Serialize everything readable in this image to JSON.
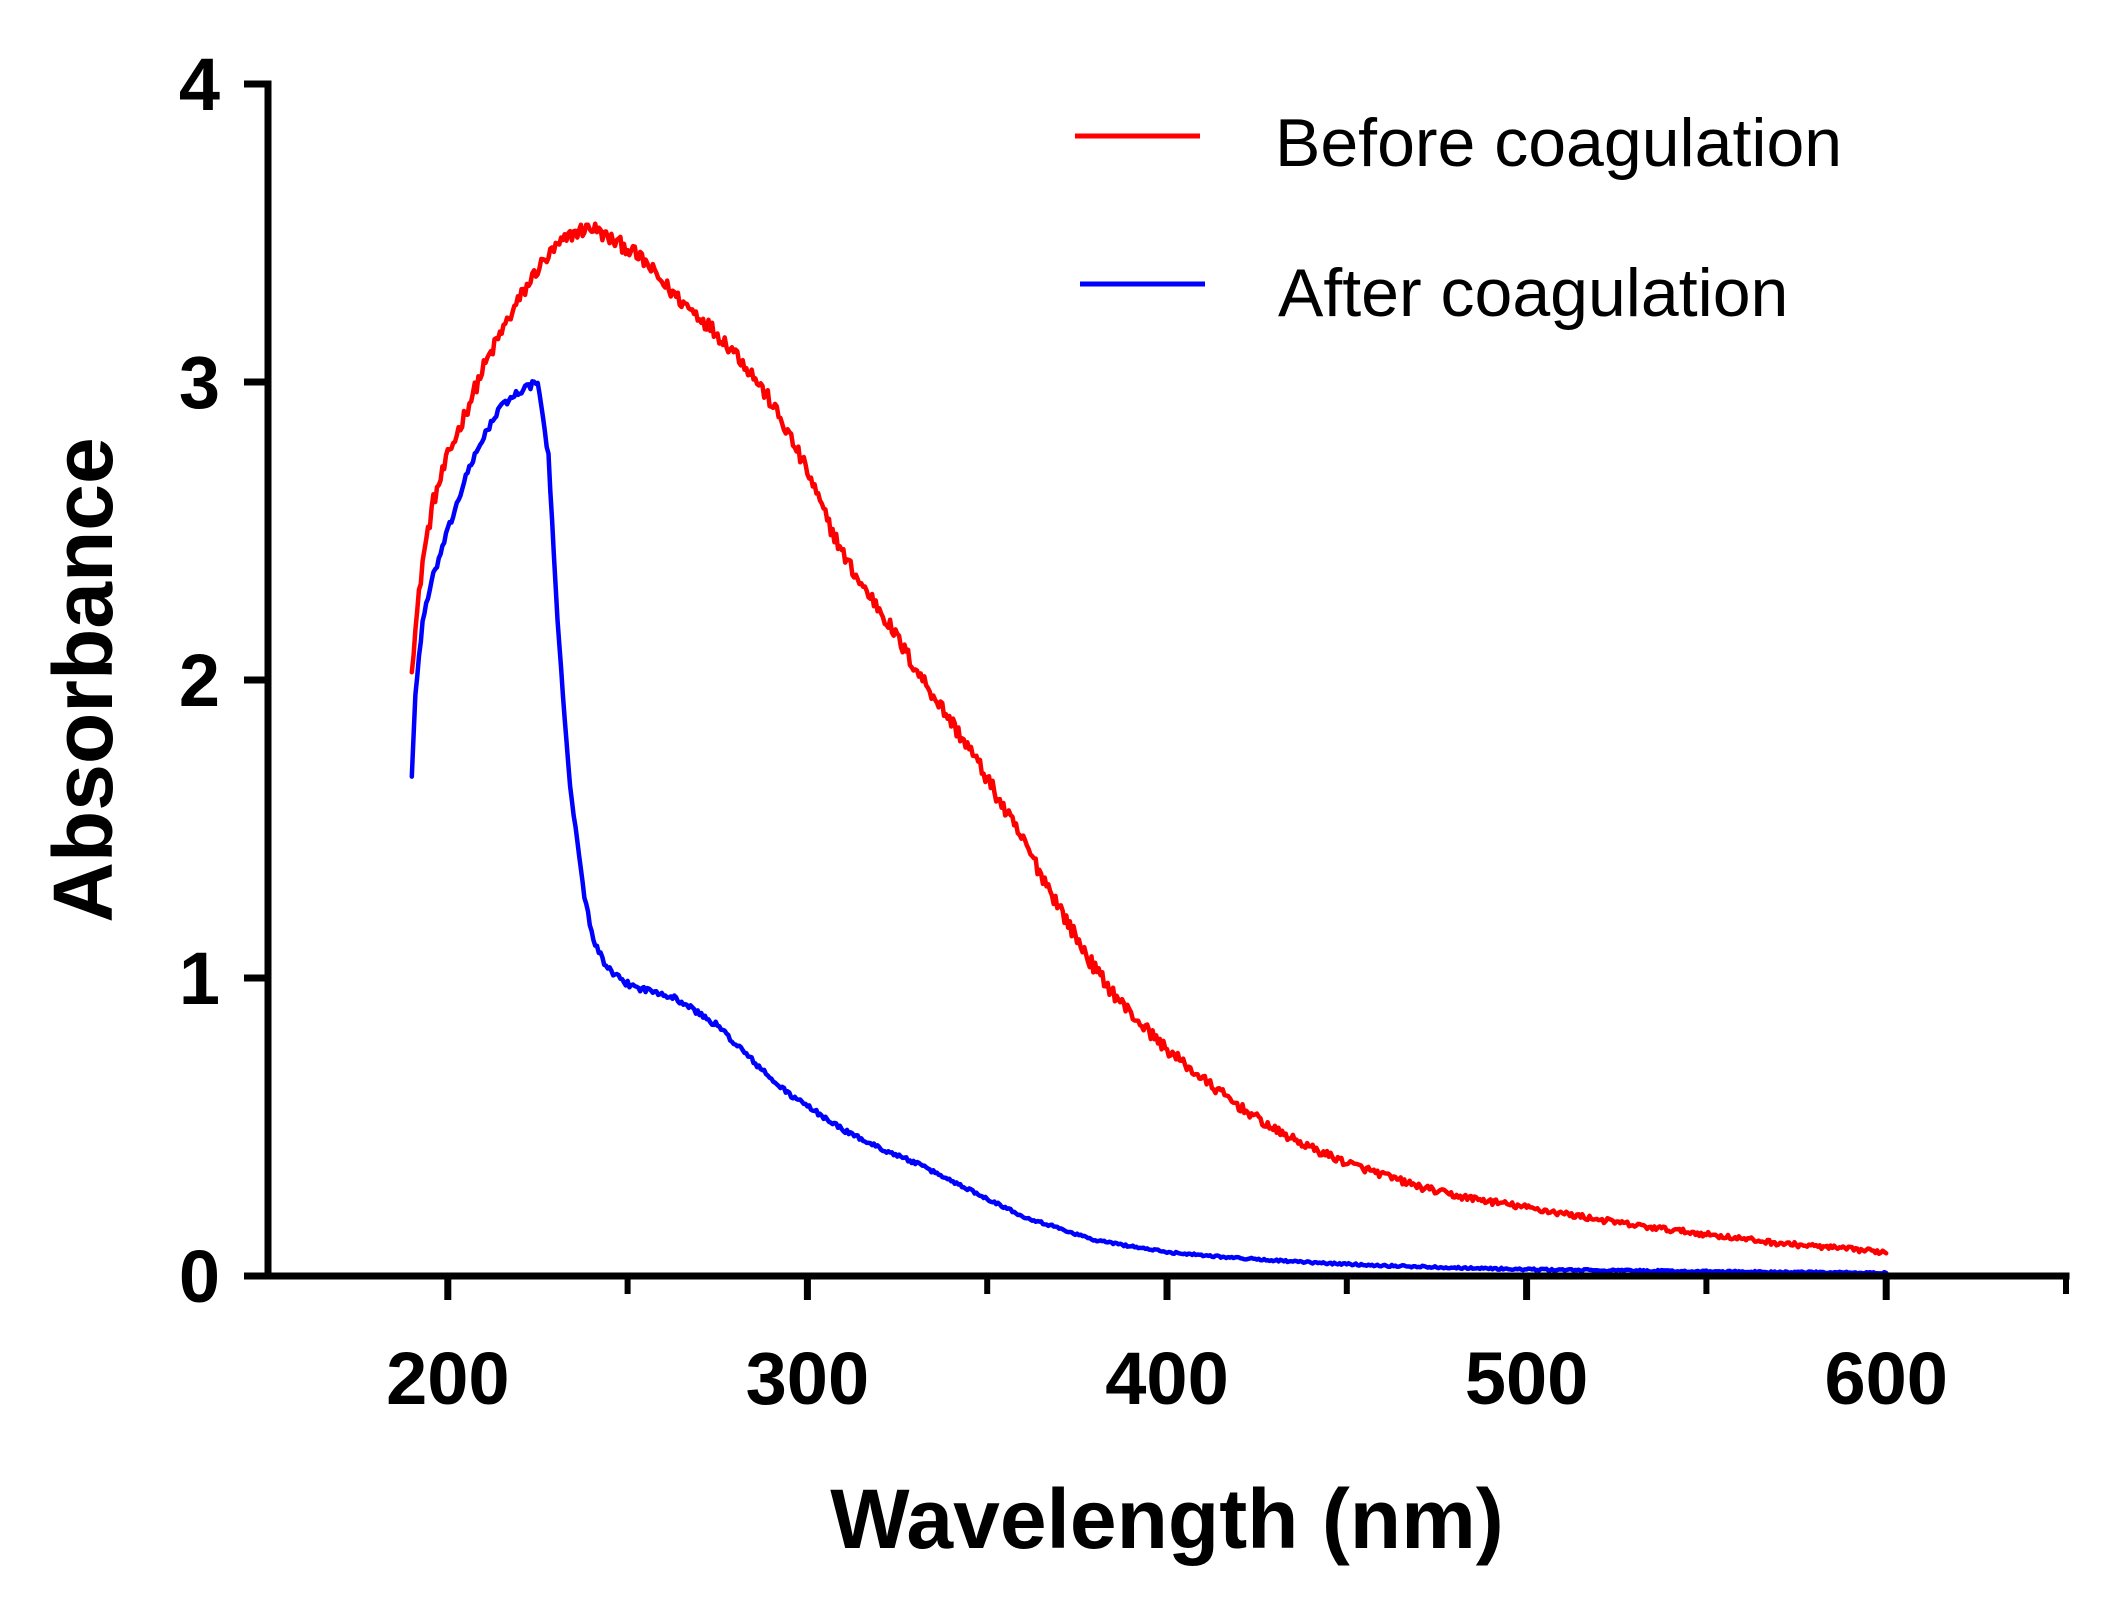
{
  "chart_data": {
    "type": "line",
    "title": "",
    "xlabel": "Wavelength (nm)",
    "ylabel": "Absorbance",
    "xlim": [
      150,
      650
    ],
    "ylim": [
      0,
      4
    ],
    "xticks": [
      200,
      300,
      400,
      500,
      600
    ],
    "xtick_labels": [
      "200",
      "300",
      "400",
      "500",
      "600"
    ],
    "x_minor_ticks": [
      250,
      350,
      450,
      550,
      650
    ],
    "yticks": [
      0,
      1,
      2,
      3,
      4
    ],
    "ytick_labels": [
      "0",
      "1",
      "2",
      "3",
      "4"
    ],
    "grid": false,
    "legend_position": "top-right",
    "series": [
      {
        "name": "Before coagulation",
        "color": "#ff0000",
        "noise": 0.025,
        "x": [
          190,
          193,
          196,
          200,
          205,
          210,
          215,
          220,
          225,
          230,
          235,
          240,
          245,
          250,
          255,
          260,
          265,
          270,
          275,
          280,
          285,
          290,
          295,
          300,
          305,
          310,
          315,
          320,
          325,
          330,
          335,
          340,
          345,
          350,
          355,
          360,
          365,
          370,
          375,
          380,
          385,
          390,
          395,
          400,
          405,
          410,
          420,
          430,
          440,
          450,
          460,
          470,
          480,
          490,
          500,
          510,
          520,
          530,
          540,
          550,
          560,
          570,
          580,
          590,
          600
        ],
        "y": [
          2.05,
          2.4,
          2.6,
          2.75,
          2.9,
          3.05,
          3.17,
          3.28,
          3.38,
          3.45,
          3.5,
          3.52,
          3.48,
          3.45,
          3.4,
          3.33,
          3.27,
          3.22,
          3.16,
          3.1,
          3.02,
          2.93,
          2.82,
          2.7,
          2.55,
          2.42,
          2.32,
          2.24,
          2.14,
          2.04,
          1.95,
          1.86,
          1.77,
          1.67,
          1.56,
          1.46,
          1.35,
          1.24,
          1.13,
          1.03,
          0.95,
          0.88,
          0.82,
          0.76,
          0.71,
          0.66,
          0.57,
          0.49,
          0.43,
          0.38,
          0.34,
          0.3,
          0.27,
          0.25,
          0.23,
          0.21,
          0.19,
          0.17,
          0.155,
          0.14,
          0.125,
          0.11,
          0.1,
          0.09,
          0.08
        ]
      },
      {
        "name": "After coagulation",
        "color": "#0000ff",
        "noise": 0.012,
        "x": [
          190,
          191,
          193,
          196,
          200,
          205,
          210,
          215,
          220,
          225,
          228,
          230,
          232,
          234,
          236,
          238,
          240,
          243,
          246,
          250,
          255,
          260,
          265,
          270,
          275,
          280,
          285,
          290,
          295,
          300,
          305,
          310,
          315,
          320,
          330,
          340,
          350,
          360,
          370,
          380,
          390,
          400,
          420,
          440,
          460,
          480,
          500,
          550,
          600
        ],
        "y": [
          1.68,
          1.95,
          2.2,
          2.35,
          2.5,
          2.68,
          2.82,
          2.92,
          2.97,
          3.0,
          2.75,
          2.3,
          1.95,
          1.65,
          1.45,
          1.28,
          1.15,
          1.06,
          1.01,
          0.98,
          0.96,
          0.95,
          0.92,
          0.88,
          0.84,
          0.78,
          0.72,
          0.66,
          0.61,
          0.57,
          0.53,
          0.49,
          0.46,
          0.43,
          0.38,
          0.32,
          0.26,
          0.2,
          0.16,
          0.12,
          0.1,
          0.08,
          0.06,
          0.045,
          0.035,
          0.028,
          0.022,
          0.015,
          0.01
        ]
      }
    ]
  }
}
